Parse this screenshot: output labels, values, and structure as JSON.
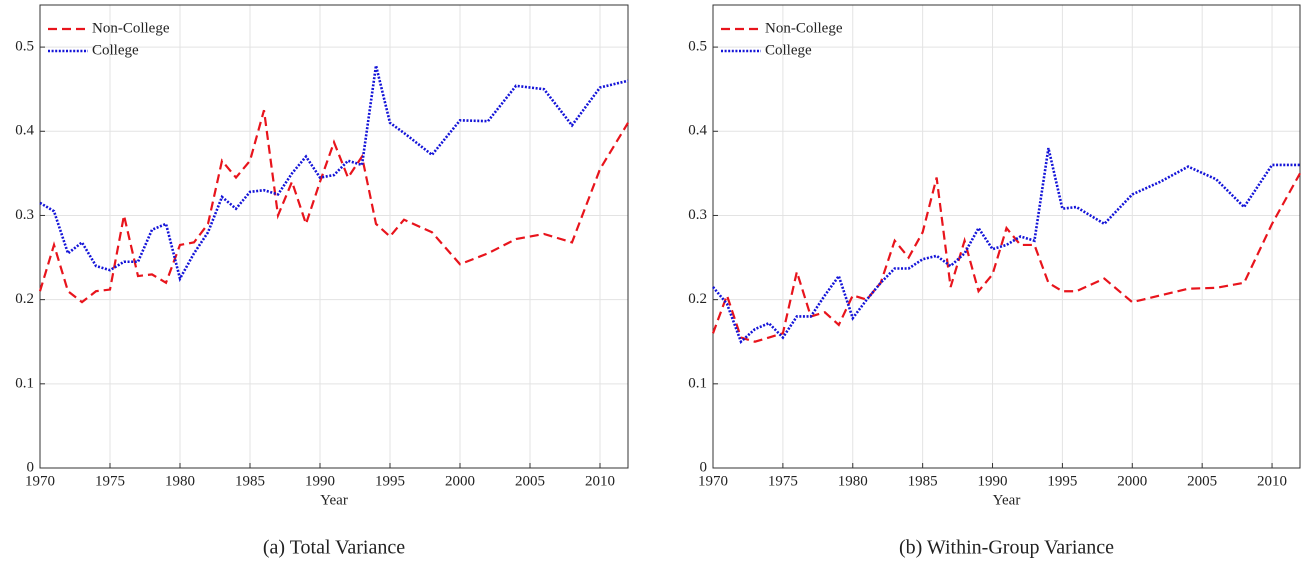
{
  "chart_data": [
    {
      "type": "line",
      "title": "(a) Total Variance",
      "x_label": "Year",
      "x": [
        1970,
        1971,
        1972,
        1973,
        1974,
        1975,
        1976,
        1977,
        1978,
        1979,
        1980,
        1981,
        1982,
        1983,
        1984,
        1985,
        1986,
        1987,
        1988,
        1989,
        1990,
        1991,
        1992,
        1993,
        1994,
        1995,
        1996,
        1998,
        2000,
        2002,
        2004,
        2006,
        2008,
        2010,
        2012
      ],
      "series": [
        {
          "name": "Non-College",
          "color": "#e8141c",
          "style": "dashed",
          "values": [
            0.21,
            0.265,
            0.21,
            0.197,
            0.21,
            0.212,
            0.3,
            0.228,
            0.23,
            0.22,
            0.265,
            0.268,
            0.29,
            0.365,
            0.345,
            0.365,
            0.425,
            0.3,
            0.34,
            0.29,
            0.34,
            0.387,
            0.345,
            0.37,
            0.29,
            0.275,
            0.295,
            0.28,
            0.242,
            0.255,
            0.272,
            0.278,
            0.268,
            0.355,
            0.41
          ]
        },
        {
          "name": "College",
          "color": "#1414d8",
          "style": "dotted",
          "values": [
            0.315,
            0.305,
            0.255,
            0.268,
            0.24,
            0.235,
            0.245,
            0.245,
            0.283,
            0.29,
            0.225,
            0.255,
            0.28,
            0.322,
            0.308,
            0.328,
            0.33,
            0.325,
            0.35,
            0.37,
            0.345,
            0.348,
            0.365,
            0.36,
            0.478,
            0.41,
            0.398,
            0.372,
            0.413,
            0.412,
            0.454,
            0.45,
            0.407,
            0.452,
            0.46
          ]
        }
      ],
      "xlim": [
        1970,
        2012
      ],
      "xticks": [
        1970,
        1975,
        1980,
        1985,
        1990,
        1995,
        2000,
        2005,
        2010
      ],
      "ylim": [
        0,
        0.55
      ],
      "yticks": [
        0,
        0.1,
        0.2,
        0.3,
        0.4,
        0.5
      ],
      "grid": true,
      "legend": "upper-left"
    },
    {
      "type": "line",
      "title": "(b) Within-Group Variance",
      "x_label": "Year",
      "x": [
        1970,
        1971,
        1972,
        1973,
        1974,
        1975,
        1976,
        1977,
        1978,
        1979,
        1980,
        1981,
        1982,
        1983,
        1984,
        1985,
        1986,
        1987,
        1988,
        1989,
        1990,
        1991,
        1992,
        1993,
        1994,
        1995,
        1996,
        1998,
        2000,
        2002,
        2004,
        2006,
        2008,
        2010,
        2012
      ],
      "series": [
        {
          "name": "Non-College",
          "color": "#e8141c",
          "style": "dashed",
          "values": [
            0.16,
            0.205,
            0.155,
            0.15,
            0.155,
            0.16,
            0.233,
            0.18,
            0.185,
            0.17,
            0.205,
            0.2,
            0.22,
            0.27,
            0.25,
            0.28,
            0.345,
            0.215,
            0.27,
            0.21,
            0.23,
            0.285,
            0.265,
            0.265,
            0.22,
            0.21,
            0.21,
            0.225,
            0.197,
            0.205,
            0.213,
            0.214,
            0.22,
            0.29,
            0.35
          ]
        },
        {
          "name": "College",
          "color": "#1414d8",
          "style": "dotted",
          "values": [
            0.215,
            0.195,
            0.15,
            0.165,
            0.172,
            0.155,
            0.18,
            0.18,
            0.205,
            0.228,
            0.178,
            0.2,
            0.22,
            0.237,
            0.237,
            0.248,
            0.252,
            0.24,
            0.255,
            0.285,
            0.26,
            0.265,
            0.275,
            0.27,
            0.38,
            0.308,
            0.31,
            0.29,
            0.325,
            0.34,
            0.358,
            0.343,
            0.31,
            0.36,
            0.36
          ]
        }
      ],
      "xlim": [
        1970,
        2012
      ],
      "xticks": [
        1970,
        1975,
        1980,
        1985,
        1990,
        1995,
        2000,
        2005,
        2010
      ],
      "ylim": [
        0,
        0.55
      ],
      "yticks": [
        0,
        0.1,
        0.2,
        0.3,
        0.4,
        0.5
      ],
      "grid": true,
      "legend": "upper-left"
    }
  ]
}
